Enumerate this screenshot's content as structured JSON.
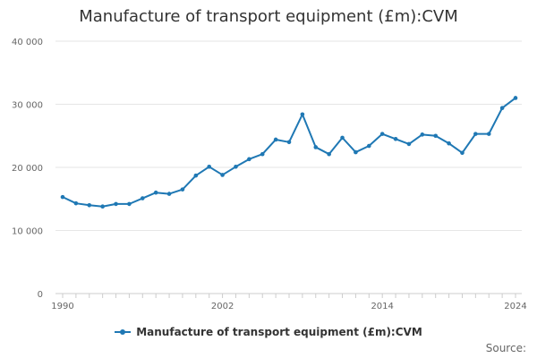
{
  "chart_data": {
    "type": "line",
    "title": "Manufacture of transport equipment (£m):CVM",
    "xlabel": "",
    "ylabel": "",
    "x": [
      1990,
      1991,
      1992,
      1993,
      1994,
      1995,
      1996,
      1997,
      1998,
      1999,
      2000,
      2001,
      2002,
      2003,
      2004,
      2005,
      2006,
      2007,
      2008,
      2009,
      2010,
      2011,
      2012,
      2013,
      2014,
      2015,
      2016,
      2017,
      2018,
      2019,
      2020,
      2021,
      2022,
      2023,
      2024
    ],
    "series": [
      {
        "name": "Manufacture of transport equipment (£m):CVM",
        "color": "#1f78b4",
        "values": [
          15300,
          14300,
          14000,
          13800,
          14200,
          14200,
          15100,
          16000,
          15800,
          16500,
          18700,
          20100,
          18800,
          20100,
          21300,
          22100,
          24400,
          24000,
          28400,
          23200,
          22100,
          24700,
          22400,
          23400,
          25300,
          24500,
          23700,
          25200,
          25000,
          23800,
          22300,
          25300,
          25300,
          29400,
          31000
        ]
      }
    ],
    "ylim": [
      0,
      40000
    ],
    "y_ticks": [
      0,
      10000,
      20000,
      30000,
      40000
    ],
    "y_tick_labels": [
      "0",
      "10 000",
      "20 000",
      "30 000",
      "40 000"
    ],
    "x_tick_labels": [
      "1990",
      "2002",
      "2014",
      "2024"
    ],
    "grid": true,
    "legend_position": "bottom-center"
  },
  "source_label": "Source:"
}
